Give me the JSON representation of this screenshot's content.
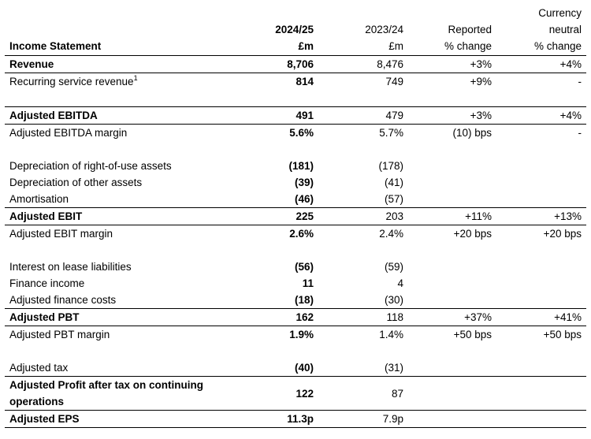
{
  "header": {
    "title": "Income Statement",
    "col_current": [
      "2024/25",
      "£m"
    ],
    "col_prior": [
      "2023/24",
      "£m"
    ],
    "col_reported": [
      "Reported",
      "% change"
    ],
    "col_cc": [
      "Currency",
      "neutral",
      "% change"
    ]
  },
  "rows": {
    "revenue": {
      "label": "Revenue",
      "cur": "8,706",
      "prior": "8,476",
      "rep": "+3%",
      "cc": "+4%"
    },
    "recurring": {
      "label": "Recurring service revenue",
      "sup": "1",
      "cur": "814",
      "prior": "749",
      "rep": "+9%",
      "cc": "-"
    },
    "ebitda": {
      "label": "Adjusted EBITDA",
      "cur": "491",
      "prior": "479",
      "rep": "+3%",
      "cc": "+4%"
    },
    "ebitda_margin": {
      "label": "Adjusted EBITDA margin",
      "cur": "5.6%",
      "prior": "5.7%",
      "rep": "(10) bps",
      "cc": "-"
    },
    "dep_rou": {
      "label": "Depreciation of right-of-use assets",
      "cur": "(181)",
      "prior": "(178)"
    },
    "dep_other": {
      "label": "Depreciation of other assets",
      "cur": "(39)",
      "prior": "(41)"
    },
    "amort": {
      "label": "Amortisation",
      "cur": "(46)",
      "prior": "(57)"
    },
    "ebit": {
      "label": "Adjusted EBIT",
      "cur": "225",
      "prior": "203",
      "rep": "+11%",
      "cc": "+13%"
    },
    "ebit_margin": {
      "label": "Adjusted EBIT margin",
      "cur": "2.6%",
      "prior": "2.4%",
      "rep": "+20 bps",
      "cc": "+20 bps"
    },
    "lease_int": {
      "label": "Interest on lease liabilities",
      "cur": "(56)",
      "prior": "(59)"
    },
    "fin_income": {
      "label": "Finance income",
      "cur": "11",
      "prior": "4"
    },
    "fin_costs": {
      "label": "Adjusted finance costs",
      "cur": "(18)",
      "prior": "(30)"
    },
    "pbt": {
      "label": "Adjusted PBT",
      "cur": "162",
      "prior": "118",
      "rep": "+37%",
      "cc": "+41%"
    },
    "pbt_margin": {
      "label": "Adjusted PBT margin",
      "cur": "1.9%",
      "prior": "1.4%",
      "rep": "+50 bps",
      "cc": "+50 bps"
    },
    "tax": {
      "label": "Adjusted tax",
      "cur": "(40)",
      "prior": "(31)"
    },
    "pat": {
      "label": "Adjusted Profit after tax on continuing operations",
      "cur": "122",
      "prior": "87"
    },
    "eps": {
      "label": "Adjusted EPS",
      "cur": "11.3p",
      "prior": "7.9p"
    }
  }
}
